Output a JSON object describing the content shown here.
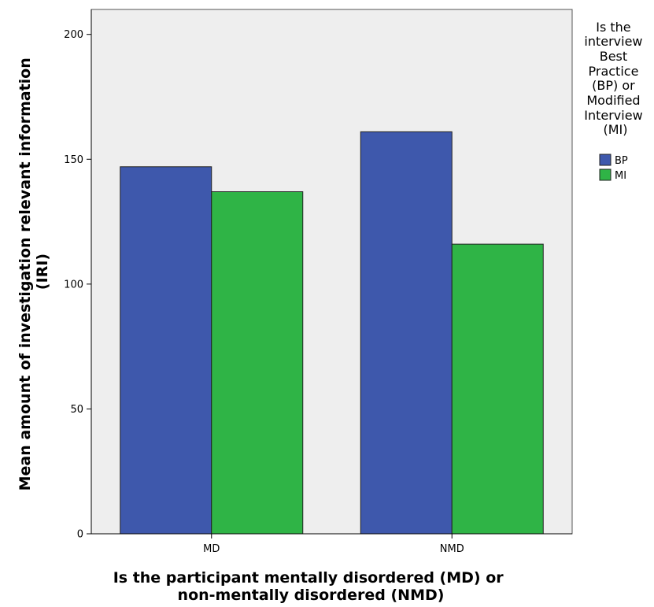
{
  "chart_data": {
    "type": "bar",
    "categories": [
      "MD",
      "NMD"
    ],
    "series": [
      {
        "name": "BP",
        "values": [
          147,
          161
        ],
        "color": "#3e58ac"
      },
      {
        "name": "MI",
        "values": [
          137,
          116
        ],
        "color": "#2fb446"
      }
    ],
    "ylim": [
      0,
      210
    ],
    "yticks": [
      0,
      50,
      100,
      150,
      200
    ],
    "ylabel_lines": [
      "Mean amount of investigation relevant information",
      "(IRI)"
    ],
    "xlabel_lines": [
      "Is the participant mentally disordered (MD) or",
      "non-mentally disordered (NMD)"
    ],
    "legend": {
      "title_lines": [
        "Is the",
        "interview",
        "Best",
        "Practice",
        "(BP) or",
        "Modified",
        "Interview",
        "(MI)"
      ],
      "position": "right"
    },
    "plot_background": "#eeeeee",
    "grid": false
  }
}
